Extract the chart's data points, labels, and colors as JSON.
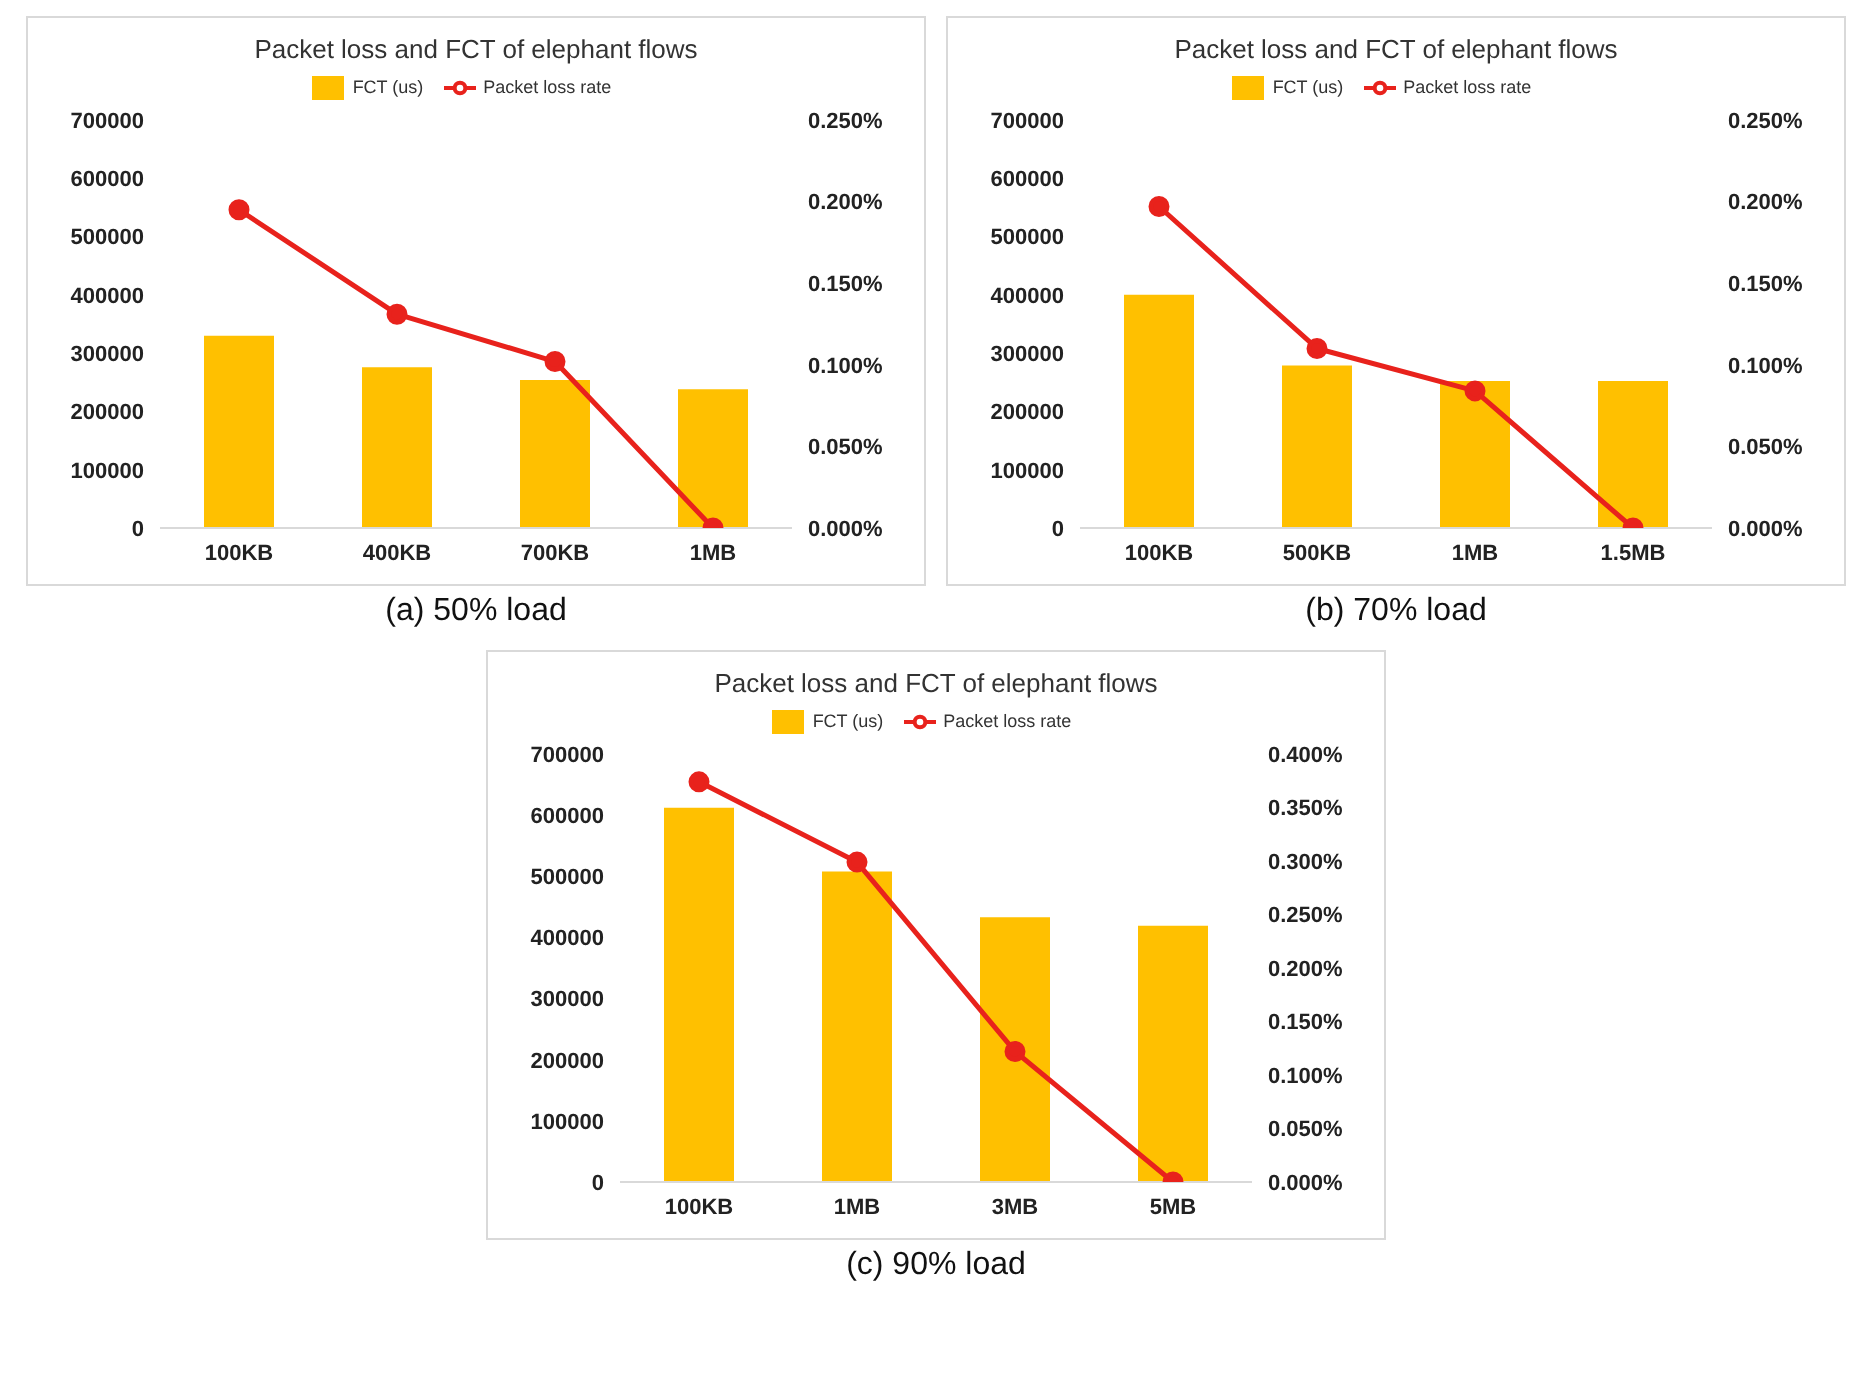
{
  "chart_data": [
    {
      "type": "bar",
      "title": "Packet loss and FCT of elephant flows",
      "categories": [
        "100KB",
        "400KB",
        "700KB",
        "1MB"
      ],
      "series": [
        {
          "name": "FCT (us)",
          "color": "#ffc000",
          "values": [
            330000,
            276000,
            254000,
            238000
          ]
        },
        {
          "name": "Packet loss rate",
          "type": "line",
          "axis": "y2",
          "color": "#e8221c",
          "values": [
            0.195,
            0.131,
            0.102,
            0
          ]
        }
      ],
      "ylim": [
        0,
        700000
      ],
      "yticks": [
        0,
        100000,
        200000,
        300000,
        400000,
        500000,
        600000,
        700000
      ],
      "y2lim": [
        0,
        0.25
      ],
      "y2ticks": [
        {
          "value": 0,
          "label": "0.000%"
        },
        {
          "value": 0.05,
          "label": "0.050%"
        },
        {
          "value": 0.1,
          "label": "0.100%"
        },
        {
          "value": 0.15,
          "label": "0.150%"
        },
        {
          "value": 0.2,
          "label": "0.200%"
        },
        {
          "value": 0.25,
          "label": "0.250%"
        }
      ],
      "legend": "top",
      "marker": "circle",
      "annotations": [
        "(a) 50% load"
      ]
    },
    {
      "type": "bar",
      "title": "Packet loss and FCT of elephant flows",
      "categories": [
        "100KB",
        "500KB",
        "1MB",
        "1.5MB"
      ],
      "series": [
        {
          "name": "FCT (us)",
          "color": "#ffc000",
          "values": [
            400000,
            279000,
            252000,
            252000
          ]
        },
        {
          "name": "Packet loss rate",
          "type": "line",
          "axis": "y2",
          "color": "#e8221c",
          "values": [
            0.197,
            0.11,
            0.084,
            0
          ]
        }
      ],
      "ylim": [
        0,
        700000
      ],
      "yticks": [
        0,
        100000,
        200000,
        300000,
        400000,
        500000,
        600000,
        700000
      ],
      "y2lim": [
        0,
        0.25
      ],
      "y2ticks": [
        {
          "value": 0,
          "label": "0.000%"
        },
        {
          "value": 0.05,
          "label": "0.050%"
        },
        {
          "value": 0.1,
          "label": "0.100%"
        },
        {
          "value": 0.15,
          "label": "0.150%"
        },
        {
          "value": 0.2,
          "label": "0.200%"
        },
        {
          "value": 0.25,
          "label": "0.250%"
        }
      ],
      "legend": "top",
      "marker": "circle",
      "annotations": [
        "(b) 70% load"
      ]
    },
    {
      "type": "bar",
      "title": "Packet loss and FCT of elephant flows",
      "categories": [
        "100KB",
        "1MB",
        "3MB",
        "5MB"
      ],
      "series": [
        {
          "name": "FCT (us)",
          "color": "#ffc000",
          "values": [
            612000,
            508000,
            433000,
            419000
          ]
        },
        {
          "name": "Packet loss rate",
          "type": "line",
          "axis": "y2",
          "color": "#e8221c",
          "values": [
            0.374,
            0.299,
            0.122,
            0
          ]
        }
      ],
      "ylim": [
        0,
        700000
      ],
      "yticks": [
        0,
        100000,
        200000,
        300000,
        400000,
        500000,
        600000,
        700000
      ],
      "y2lim": [
        0,
        0.4
      ],
      "y2ticks": [
        {
          "value": 0,
          "label": "0.000%"
        },
        {
          "value": 0.05,
          "label": "0.050%"
        },
        {
          "value": 0.1,
          "label": "0.100%"
        },
        {
          "value": 0.15,
          "label": "0.150%"
        },
        {
          "value": 0.2,
          "label": "0.200%"
        },
        {
          "value": 0.25,
          "label": "0.250%"
        },
        {
          "value": 0.3,
          "label": "0.300%"
        },
        {
          "value": 0.35,
          "label": "0.350%"
        },
        {
          "value": 0.4,
          "label": "0.400%"
        }
      ],
      "legend": "top",
      "marker": "circle",
      "annotations": [
        "(c) 90% load"
      ]
    }
  ]
}
